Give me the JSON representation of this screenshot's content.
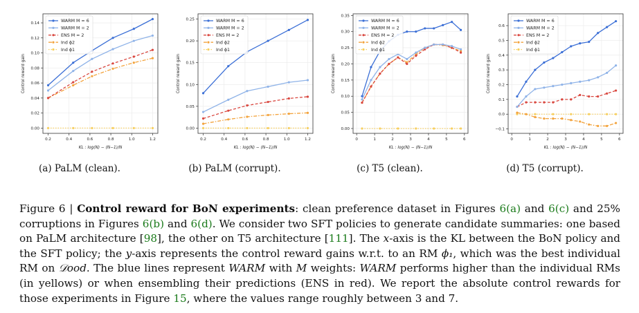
{
  "figure": {
    "number_label": "Figure 6 | ",
    "title": "Control reward for BoN experiments",
    "caption_parts": [
      ": clean preference dataset in Figures ",
      "6(a)",
      " and ",
      "6(c)",
      " and 25% corruptions in Figures ",
      "6(b)",
      " and ",
      "6(d)",
      ". We consider two SFT policies to generate candidate summaries: one based on PaLM architecture [",
      "98",
      "], the other on T5 architecture [",
      "111",
      "]. The ",
      "x",
      "-axis is the KL between the BoN policy and the SFT policy; the ",
      "y",
      "-axis represents the control reward gains w.r.t. to an RM ",
      "ϕ₁",
      ", which was the best individual RM on ",
      "𝒟ood",
      ". The blue lines represent ",
      "WARM",
      " with ",
      "M",
      " weights: ",
      "WARM",
      " performs higher than the individual RMs (in yellows) or when ensembling their predictions (ENS in red). We report the absolute control rewards for those experiments in Figure ",
      "15",
      ", where the values range roughly between 3 and 7."
    ]
  },
  "series_style": {
    "WARM M = 6": {
      "color": "#3b6fd6",
      "dash": "solid",
      "marker": "circle"
    },
    "WARM M = 2": {
      "color": "#8fb3e8",
      "dash": "solid",
      "marker": "circle"
    },
    "ENS M = 2": {
      "color": "#d9473f",
      "dash": "dashed",
      "marker": "circle"
    },
    "Ind ϕ2": {
      "color": "#f3a33c",
      "dash": "dashdot",
      "marker": "circle"
    },
    "Ind ϕ1": {
      "color": "#f7cf5e",
      "dash": "dotted",
      "marker": "circle"
    }
  },
  "chart_data": [
    {
      "type": "line",
      "subcaption": "(a) PaLM (clean).",
      "ylabel": "Control reward gain",
      "xlabel": "KL : log(N) − (N−1)/N",
      "xlim": [
        0.15,
        1.25
      ],
      "ylim": [
        -0.007,
        0.152
      ],
      "xticks": [
        0.2,
        0.4,
        0.6,
        0.8,
        1.0,
        1.2
      ],
      "xtick_labels": [
        "0.2",
        "0.4",
        "0.6",
        "0.8",
        "1.0",
        "1.2"
      ],
      "yticks": [
        0.0,
        0.02,
        0.04,
        0.06,
        0.08,
        0.1,
        0.12,
        0.14
      ],
      "ytick_labels": [
        "0.00",
        "0.02",
        "0.04",
        "0.06",
        "0.08",
        "0.10",
        "0.12",
        "0.14"
      ],
      "legend": {
        "position": "top-left",
        "entries": [
          "WARM M = 6",
          "WARM M = 2",
          "ENS M = 2",
          "Ind ϕ2",
          "Ind ϕ1"
        ]
      },
      "series": [
        {
          "name": "WARM M = 6",
          "x": [
            0.2,
            0.44,
            0.62,
            0.82,
            1.02,
            1.2
          ],
          "y": [
            0.057,
            0.087,
            0.103,
            0.12,
            0.132,
            0.145
          ]
        },
        {
          "name": "WARM M = 2",
          "x": [
            0.2,
            0.44,
            0.62,
            0.82,
            1.02,
            1.2
          ],
          "y": [
            0.05,
            0.076,
            0.092,
            0.105,
            0.116,
            0.123
          ]
        },
        {
          "name": "ENS M = 2",
          "x": [
            0.2,
            0.44,
            0.62,
            0.82,
            1.02,
            1.2
          ],
          "y": [
            0.04,
            0.061,
            0.075,
            0.086,
            0.095,
            0.104
          ]
        },
        {
          "name": "Ind ϕ2",
          "x": [
            0.2,
            0.44,
            0.62,
            0.82,
            1.02,
            1.2
          ],
          "y": [
            0.04,
            0.057,
            0.069,
            0.079,
            0.087,
            0.093
          ]
        },
        {
          "name": "Ind ϕ1",
          "x": [
            0.2,
            0.44,
            0.62,
            0.82,
            1.02,
            1.2
          ],
          "y": [
            0.0,
            0.0,
            0.0,
            0.0,
            0.0,
            0.0
          ]
        }
      ]
    },
    {
      "type": "line",
      "subcaption": "(b) PaLM (corrupt).",
      "ylabel": "Control reward gain",
      "xlabel": "KL : log(N) − (N−1)/N",
      "xlim": [
        0.15,
        1.25
      ],
      "ylim": [
        -0.012,
        0.262
      ],
      "xticks": [
        0.2,
        0.4,
        0.6,
        0.8,
        1.0,
        1.2
      ],
      "xtick_labels": [
        "0.2",
        "0.4",
        "0.6",
        "0.8",
        "1.0",
        "1.2"
      ],
      "yticks": [
        0.0,
        0.05,
        0.1,
        0.15,
        0.2,
        0.25
      ],
      "ytick_labels": [
        "0.00",
        "0.05",
        "0.10",
        "0.15",
        "0.20",
        "0.25"
      ],
      "legend": {
        "position": "top-left",
        "entries": [
          "WARM M = 6",
          "WARM M = 2",
          "ENS M = 2",
          "Ind ϕ2",
          "Ind ϕ1"
        ]
      },
      "series": [
        {
          "name": "WARM M = 6",
          "x": [
            0.2,
            0.44,
            0.62,
            0.82,
            1.02,
            1.2
          ],
          "y": [
            0.08,
            0.142,
            0.175,
            0.2,
            0.225,
            0.248
          ]
        },
        {
          "name": "WARM M = 2",
          "x": [
            0.2,
            0.44,
            0.62,
            0.82,
            1.02,
            1.2
          ],
          "y": [
            0.037,
            0.065,
            0.085,
            0.095,
            0.105,
            0.11
          ]
        },
        {
          "name": "ENS M = 2",
          "x": [
            0.2,
            0.44,
            0.62,
            0.82,
            1.02,
            1.2
          ],
          "y": [
            0.022,
            0.04,
            0.052,
            0.06,
            0.068,
            0.072
          ]
        },
        {
          "name": "Ind ϕ2",
          "x": [
            0.2,
            0.44,
            0.62,
            0.82,
            1.02,
            1.2
          ],
          "y": [
            0.01,
            0.02,
            0.026,
            0.03,
            0.033,
            0.035
          ]
        },
        {
          "name": "Ind ϕ1",
          "x": [
            0.2,
            0.44,
            0.62,
            0.82,
            1.02,
            1.2
          ],
          "y": [
            0.0,
            0.0,
            0.0,
            0.0,
            0.0,
            0.0
          ]
        }
      ]
    },
    {
      "type": "line",
      "subcaption": "(c) T5 (clean).",
      "ylabel": "Control reward gain",
      "xlabel": "KL : log(N) − (N−1)/N",
      "xlim": [
        -0.2,
        6.2
      ],
      "ylim": [
        -0.015,
        0.355
      ],
      "xticks": [
        0,
        1,
        2,
        3,
        4,
        5,
        6
      ],
      "xtick_labels": [
        "0",
        "1",
        "2",
        "3",
        "4",
        "5",
        "6"
      ],
      "yticks": [
        0.0,
        0.05,
        0.1,
        0.15,
        0.2,
        0.25,
        0.3,
        0.35
      ],
      "ytick_labels": [
        "0.00",
        "0.05",
        "0.10",
        "0.15",
        "0.20",
        "0.25",
        "0.30",
        "0.35"
      ],
      "legend": {
        "position": "top-left",
        "entries": [
          "WARM M = 6",
          "WARM M = 2",
          "ENS M = 2",
          "Ind ϕ2",
          "Ind ϕ1"
        ]
      },
      "series": [
        {
          "name": "WARM M = 6",
          "x": [
            0.3,
            0.8,
            1.3,
            1.8,
            2.3,
            2.8,
            3.3,
            3.8,
            4.3,
            4.8,
            5.3,
            5.8
          ],
          "y": [
            0.1,
            0.19,
            0.24,
            0.27,
            0.29,
            0.3,
            0.3,
            0.31,
            0.31,
            0.32,
            0.33,
            0.305
          ]
        },
        {
          "name": "WARM M = 2",
          "x": [
            0.3,
            0.8,
            1.3,
            1.8,
            2.3,
            2.8,
            3.3,
            3.8,
            4.3,
            4.8,
            5.3,
            5.8
          ],
          "y": [
            0.09,
            0.15,
            0.19,
            0.215,
            0.23,
            0.215,
            0.235,
            0.25,
            0.26,
            0.26,
            0.255,
            0.245
          ]
        },
        {
          "name": "ENS M = 2",
          "x": [
            0.3,
            0.8,
            1.3,
            1.8,
            2.3,
            2.8,
            3.3,
            3.8,
            4.3,
            4.8,
            5.3,
            5.8
          ],
          "y": [
            0.08,
            0.13,
            0.17,
            0.2,
            0.22,
            0.2,
            0.225,
            0.245,
            0.26,
            0.26,
            0.25,
            0.235
          ]
        },
        {
          "name": "Ind ϕ2",
          "x": [
            0.3,
            0.8,
            1.3,
            1.8,
            2.3,
            2.8,
            3.3,
            3.8,
            4.3,
            4.8,
            5.3,
            5.8
          ],
          "y": [
            0.08,
            0.13,
            0.17,
            0.2,
            0.22,
            0.205,
            0.23,
            0.25,
            0.26,
            0.258,
            0.25,
            0.24
          ]
        },
        {
          "name": "Ind ϕ1",
          "x": [
            0.3,
            1.3,
            2.3,
            3.3,
            4.3,
            5.3,
            5.8
          ],
          "y": [
            0.0,
            0.0,
            0.0,
            0.0,
            0.0,
            0.0,
            0.0
          ]
        }
      ]
    },
    {
      "type": "line",
      "subcaption": "(d) T5 (corrupt).",
      "ylabel": "Control reward gain",
      "xlabel": "KL : log(N) − (N−1)/N",
      "xlim": [
        -0.2,
        6.2
      ],
      "ylim": [
        -0.13,
        0.68
      ],
      "xticks": [
        0,
        1,
        2,
        3,
        4,
        5,
        6
      ],
      "xtick_labels": [
        "0",
        "1",
        "2",
        "3",
        "4",
        "5",
        "6"
      ],
      "yticks": [
        -0.1,
        0.0,
        0.1,
        0.2,
        0.3,
        0.4,
        0.5,
        0.6
      ],
      "ytick_labels": [
        "−0.1",
        "0.0",
        "0.1",
        "0.2",
        "0.3",
        "0.4",
        "0.5",
        "0.6"
      ],
      "legend": {
        "position": "top-left",
        "entries": [
          "WARM M = 6",
          "WARM M = 2",
          "ENS M = 2",
          "Ind ϕ2",
          "Ind ϕ1"
        ]
      },
      "series": [
        {
          "name": "WARM M = 6",
          "x": [
            0.3,
            0.8,
            1.3,
            1.8,
            2.3,
            2.8,
            3.3,
            3.8,
            4.3,
            4.8,
            5.3,
            5.8
          ],
          "y": [
            0.12,
            0.22,
            0.3,
            0.35,
            0.38,
            0.42,
            0.46,
            0.48,
            0.49,
            0.55,
            0.59,
            0.63
          ]
        },
        {
          "name": "WARM M = 2",
          "x": [
            0.3,
            0.8,
            1.3,
            1.8,
            2.3,
            2.8,
            3.3,
            3.8,
            4.3,
            4.8,
            5.3,
            5.8
          ],
          "y": [
            0.05,
            0.12,
            0.17,
            0.18,
            0.19,
            0.2,
            0.21,
            0.22,
            0.23,
            0.25,
            0.28,
            0.33
          ]
        },
        {
          "name": "ENS M = 2",
          "x": [
            0.3,
            0.8,
            1.3,
            1.8,
            2.3,
            2.8,
            3.3,
            3.8,
            4.3,
            4.8,
            5.3,
            5.8
          ],
          "y": [
            0.05,
            0.08,
            0.08,
            0.08,
            0.08,
            0.1,
            0.1,
            0.13,
            0.12,
            0.12,
            0.14,
            0.16
          ]
        },
        {
          "name": "Ind ϕ2",
          "x": [
            0.3,
            0.8,
            1.3,
            1.8,
            2.3,
            2.8,
            3.3,
            3.8,
            4.3,
            4.8,
            5.3,
            5.8
          ],
          "y": [
            0.01,
            0.0,
            -0.02,
            -0.03,
            -0.03,
            -0.03,
            -0.04,
            -0.05,
            -0.07,
            -0.08,
            -0.08,
            -0.06
          ]
        },
        {
          "name": "Ind ϕ1",
          "x": [
            0.3,
            1.3,
            2.3,
            3.3,
            4.3,
            5.3,
            5.8
          ],
          "y": [
            0.0,
            0.0,
            0.0,
            0.0,
            0.0,
            0.0,
            0.0
          ]
        }
      ]
    }
  ]
}
